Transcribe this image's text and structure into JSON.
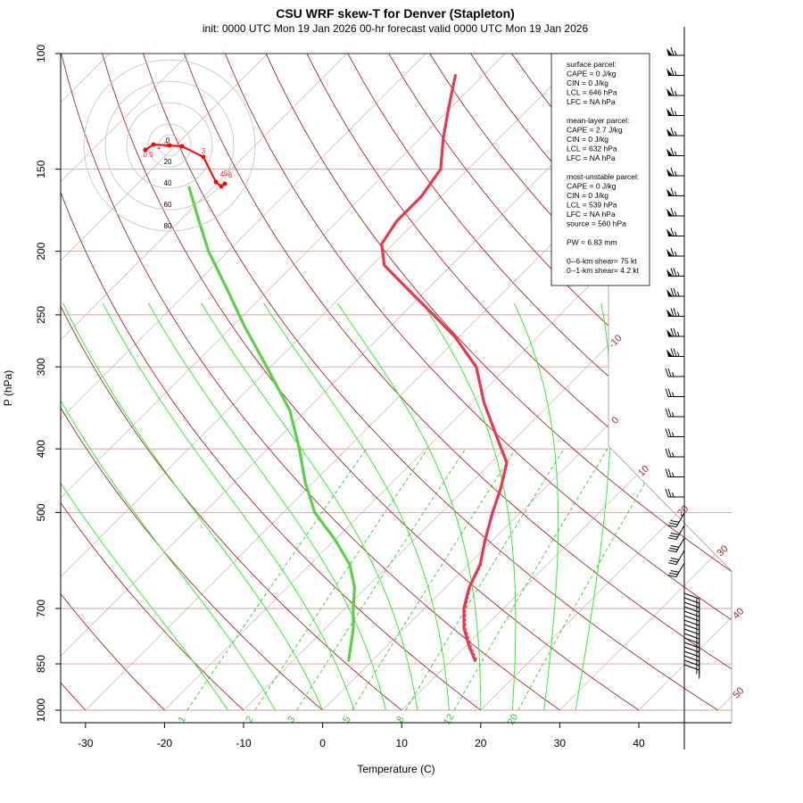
{
  "chart_data": {
    "type": "skew-t",
    "title": "CSU WRF skew-T for Denver (Stapleton)",
    "subtitle": "init: 0000 UTC Mon 19 Jan 2026     00-hr forecast valid 0000 UTC Mon 19 Jan 2026",
    "xlabel": "Temperature (C)",
    "ylabel": "P (hPa)",
    "x_ticks": [
      -30,
      -20,
      -10,
      0,
      10,
      20,
      30,
      40
    ],
    "y_ticks": [
      100,
      150,
      200,
      250,
      300,
      400,
      500,
      700,
      850,
      1000
    ],
    "isotherm_labels": [
      -10,
      0,
      10,
      20,
      30,
      40,
      50
    ],
    "mixing_ratio_labels": [
      "1",
      "2",
      "3",
      "5",
      "8",
      "12",
      "20"
    ],
    "temperature_profile": [
      {
        "p": 840,
        "t": 13.0
      },
      {
        "p": 800,
        "t": 10.5
      },
      {
        "p": 750,
        "t": 7.5
      },
      {
        "p": 700,
        "t": 5.0
      },
      {
        "p": 650,
        "t": 3.0
      },
      {
        "p": 600,
        "t": 1.5
      },
      {
        "p": 550,
        "t": -1.0
      },
      {
        "p": 500,
        "t": -3.5
      },
      {
        "p": 460,
        "t": -5.5
      },
      {
        "p": 420,
        "t": -8.0
      },
      {
        "p": 380,
        "t": -13.0
      },
      {
        "p": 340,
        "t": -18.5
      },
      {
        "p": 300,
        "t": -24.0
      },
      {
        "p": 270,
        "t": -30.5
      },
      {
        "p": 250,
        "t": -36.0
      },
      {
        "p": 230,
        "t": -42.0
      },
      {
        "p": 210,
        "t": -48.5
      },
      {
        "p": 195,
        "t": -51.5
      },
      {
        "p": 180,
        "t": -52.5
      },
      {
        "p": 165,
        "t": -52.5
      },
      {
        "p": 150,
        "t": -53.5
      },
      {
        "p": 135,
        "t": -57.0
      },
      {
        "p": 120,
        "t": -60.5
      },
      {
        "p": 108,
        "t": -63.5
      }
    ],
    "dewpoint_profile": [
      {
        "p": 840,
        "t": -3.0
      },
      {
        "p": 800,
        "t": -4.5
      },
      {
        "p": 750,
        "t": -6.5
      },
      {
        "p": 700,
        "t": -9.0
      },
      {
        "p": 650,
        "t": -11.5
      },
      {
        "p": 600,
        "t": -15.0
      },
      {
        "p": 550,
        "t": -20.0
      },
      {
        "p": 500,
        "t": -26.0
      },
      {
        "p": 450,
        "t": -31.0
      },
      {
        "p": 400,
        "t": -36.0
      },
      {
        "p": 350,
        "t": -42.0
      },
      {
        "p": 300,
        "t": -50.5
      },
      {
        "p": 260,
        "t": -58.5
      },
      {
        "p": 230,
        "t": -65.0
      },
      {
        "p": 200,
        "t": -72.5
      },
      {
        "p": 180,
        "t": -77.5
      },
      {
        "p": 160,
        "t": -83.0
      }
    ],
    "hodograph": {
      "ring_labels": [
        "0",
        "20",
        "40",
        "60",
        "80"
      ],
      "point_labels": [
        "0.5",
        "1",
        "2",
        "3",
        "4",
        "5",
        "6"
      ]
    },
    "info_box": [
      "surface parcel:",
      "CAPE = 0 J/kg",
      "CIN = 0 J/kg",
      "LCL = 646 hPa",
      "LFC = NA hPa",
      "",
      "mean-layer parcel:",
      "CAPE = 2.7 J/kg",
      "CIN = 0 J/kg",
      "LCL = 632 hPa",
      "LFC = NA hPa",
      "",
      "most-unstable parcel:",
      "CAPE = 0 J/kg",
      "CIN = 0 J/kg",
      "LCL = 539 hPa",
      "LFC = NA hPa",
      "source = 560 hPa",
      "",
      "PW =  6.83 mm",
      "",
      "0--6-km shear= 75 kt",
      "0--1-km shear= 4.2 kt"
    ],
    "colors": {
      "temperature": "#e8384f",
      "dewpoint": "#5ccf4a",
      "isotherm": "#a52a2a",
      "isobar": "#d9a0a0",
      "dry_adiabat": "#a52a2a",
      "moist_adiabat": "#33ee33",
      "mixing_ratio": "#33cc33",
      "hodograph": "#ff0000"
    }
  }
}
